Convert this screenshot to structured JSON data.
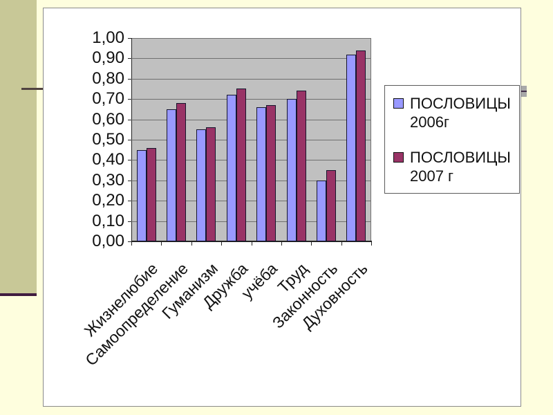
{
  "slide": {
    "background_color": "#FEFEDE",
    "sidebar_color": "#C8C897",
    "sidebar_underline_color": "#401C40",
    "accent_line_color": "#504340",
    "top_sliver_color": "#7D2248",
    "panel_background": "#FFFFFF",
    "scrollbar_handle_color": "#A8A8A8"
  },
  "chart_data": {
    "type": "bar",
    "title": "",
    "xlabel": "",
    "ylabel": "",
    "categories": [
      "Жизнелюбие",
      "Самоопределение",
      "Гуманизм",
      "Дружба",
      "учёба",
      "Труд",
      "Законность",
      "Духовность"
    ],
    "series": [
      {
        "name": "ПОСЛОВИЦЫ 2006г",
        "legend_lines": [
          "ПОСЛОВИЦЫ",
          "2006г"
        ],
        "color": "#9999FF",
        "values": [
          0.45,
          0.65,
          0.55,
          0.72,
          0.66,
          0.7,
          0.3,
          0.92
        ]
      },
      {
        "name": "ПОСЛОВИЦЫ 2007 г",
        "legend_lines": [
          "ПОСЛОВИЦЫ",
          "2007 г"
        ],
        "color": "#993366",
        "values": [
          0.46,
          0.68,
          0.56,
          0.75,
          0.67,
          0.74,
          0.35,
          0.94
        ]
      }
    ],
    "ylim": [
      0,
      1
    ],
    "y_tick_step": 0.1,
    "y_ticks": [
      "0,00",
      "0,10",
      "0,20",
      "0,30",
      "0,40",
      "0,50",
      "0,60",
      "0,70",
      "0,80",
      "0,90",
      "1,00"
    ],
    "grid": true,
    "plot_bg": "#C0C0C0",
    "legend_position": "right",
    "x_label_rotation_deg": 45
  }
}
